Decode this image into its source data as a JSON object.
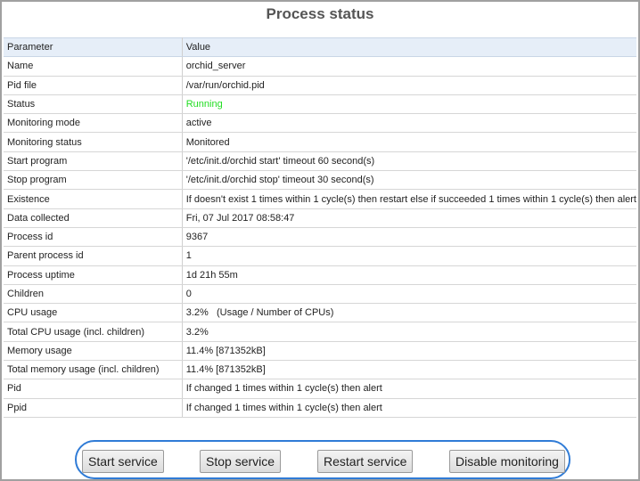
{
  "header": {
    "title": "Process status"
  },
  "table": {
    "columns": [
      "Parameter",
      "Value"
    ],
    "rows": [
      [
        "Name",
        "orchid_server"
      ],
      [
        "Pid file",
        "/var/run/orchid.pid"
      ],
      [
        "Status",
        "Running"
      ],
      [
        "Monitoring mode",
        "active"
      ],
      [
        "Monitoring status",
        "Monitored"
      ],
      [
        "Start program",
        "'/etc/init.d/orchid start' timeout 60 second(s)"
      ],
      [
        "Stop program",
        "'/etc/init.d/orchid stop' timeout 30 second(s)"
      ],
      [
        "Existence",
        "If doesn't exist 1 times within 1 cycle(s) then restart else if succeeded 1 times within 1 cycle(s) then alert"
      ],
      [
        "Data collected",
        "Fri, 07 Jul 2017 08:58:47"
      ],
      [
        "Process id",
        "9367"
      ],
      [
        "Parent process id",
        "1"
      ],
      [
        "Process uptime",
        "1d 21h 55m"
      ],
      [
        "Children",
        "0"
      ],
      [
        "CPU usage",
        "3.2%   (Usage / Number of CPUs)"
      ],
      [
        "Total CPU usage (incl. children)",
        "3.2%"
      ],
      [
        "Memory usage",
        "11.4% [871352kB]"
      ],
      [
        "Total memory usage (incl. children)",
        "11.4% [871352kB]"
      ],
      [
        "Pid",
        "If changed 1 times within 1 cycle(s) then alert"
      ],
      [
        "Ppid",
        "If changed 1 times within 1 cycle(s) then alert"
      ]
    ]
  },
  "buttons": [
    "Start service",
    "Stop service",
    "Restart service",
    "Disable monitoring"
  ]
}
